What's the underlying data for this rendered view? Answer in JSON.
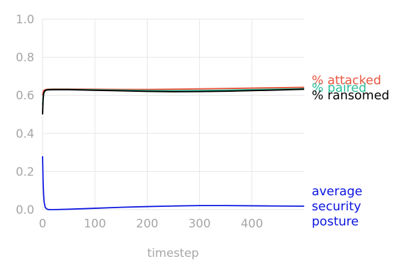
{
  "chart_data": {
    "type": "line",
    "title": "",
    "xlabel": "timestep",
    "ylabel": "",
    "xlim": [
      0,
      500
    ],
    "ylim": [
      0,
      1.0
    ],
    "xticks": [
      0,
      100,
      200,
      300,
      400
    ],
    "yticks": [
      0.0,
      0.2,
      0.4,
      0.6,
      0.8,
      1.0
    ],
    "xtick_labels": [
      "0",
      "100",
      "200",
      "300",
      "400"
    ],
    "ytick_labels": [
      "0.0",
      "0.2",
      "0.4",
      "0.6",
      "0.8",
      "1.0"
    ],
    "grid": true,
    "legend": "inline labels at right end of lines",
    "series": [
      {
        "name": "% attacked",
        "label_lines": [
          "% attacked"
        ],
        "color": "#e8553e",
        "x": [
          0,
          2,
          5,
          10,
          20,
          50,
          100,
          150,
          200,
          250,
          300,
          350,
          400,
          450,
          500
        ],
        "y": [
          0.6,
          0.625,
          0.63,
          0.632,
          0.633,
          0.633,
          0.632,
          0.631,
          0.631,
          0.632,
          0.634,
          0.636,
          0.638,
          0.64,
          0.642
        ]
      },
      {
        "name": "% paired",
        "label_lines": [
          "% paired"
        ],
        "color": "#2cbf9a",
        "x": [
          0,
          2,
          5,
          10,
          20,
          50,
          100,
          150,
          200,
          250,
          300,
          350,
          400,
          450,
          500
        ],
        "y": [
          0.55,
          0.61,
          0.625,
          0.63,
          0.631,
          0.631,
          0.629,
          0.627,
          0.625,
          0.624,
          0.625,
          0.627,
          0.63,
          0.632,
          0.635
        ]
      },
      {
        "name": "% ransomed",
        "label_lines": [
          "% ransomed"
        ],
        "color": "#000000",
        "x": [
          0,
          1,
          2,
          4,
          6,
          10,
          20,
          50,
          100,
          150,
          200,
          250,
          300,
          350,
          400,
          450,
          500
        ],
        "y": [
          0.5,
          0.58,
          0.61,
          0.622,
          0.627,
          0.629,
          0.63,
          0.63,
          0.627,
          0.624,
          0.621,
          0.619,
          0.62,
          0.622,
          0.625,
          0.628,
          0.632
        ]
      },
      {
        "name": "average security posture",
        "label_lines": [
          "average",
          "security",
          "posture"
        ],
        "color": "#0a14e0",
        "x": [
          0,
          1,
          2,
          3,
          5,
          8,
          12,
          20,
          50,
          100,
          150,
          200,
          250,
          300,
          350,
          400,
          450,
          500
        ],
        "y": [
          0.28,
          0.15,
          0.08,
          0.04,
          0.012,
          0.003,
          0.0,
          0.0,
          0.002,
          0.007,
          0.012,
          0.016,
          0.019,
          0.021,
          0.021,
          0.02,
          0.019,
          0.018
        ]
      }
    ]
  }
}
